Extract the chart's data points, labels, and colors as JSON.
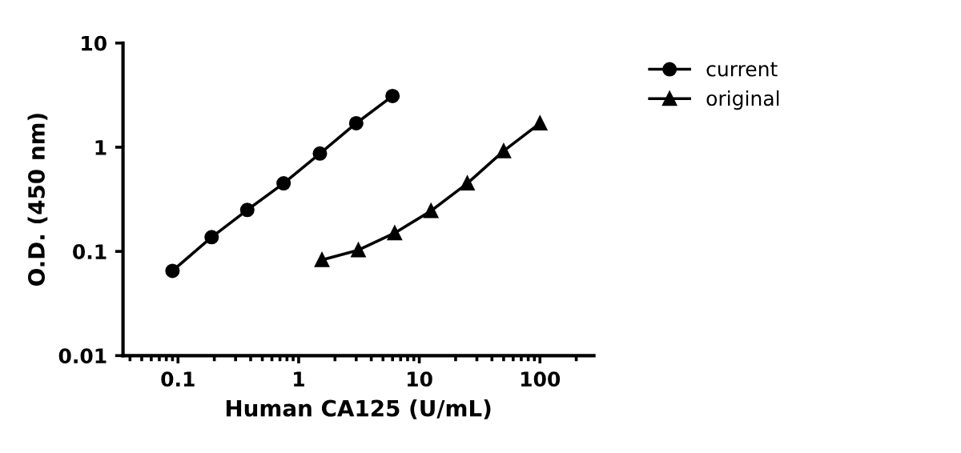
{
  "chart_data": {
    "type": "line",
    "xlabel": "Human CA125 (U/mL)",
    "ylabel": "O.D. (450 nm)",
    "log": "xy",
    "xlim": [
      0.035,
      280
    ],
    "ylim": [
      0.01,
      10
    ],
    "xticks": [
      0.1,
      1,
      10,
      100
    ],
    "yticks": [
      0.01,
      0.1,
      1,
      10
    ],
    "grid": false,
    "legend": "top right",
    "series": [
      {
        "name": "current",
        "color": "#000000",
        "marker": "circle",
        "x": [
          0.09,
          0.19,
          0.375,
          0.75,
          1.5,
          3,
          6
        ],
        "values": [
          0.065,
          0.137,
          0.25,
          0.45,
          0.87,
          1.7,
          3.1
        ]
      },
      {
        "name": "original",
        "color": "#000000",
        "marker": "triangle",
        "x": [
          1.56,
          3.125,
          6.25,
          12.5,
          25,
          50,
          100
        ],
        "values": [
          0.083,
          0.103,
          0.15,
          0.245,
          0.45,
          0.92,
          1.7
        ]
      }
    ]
  }
}
